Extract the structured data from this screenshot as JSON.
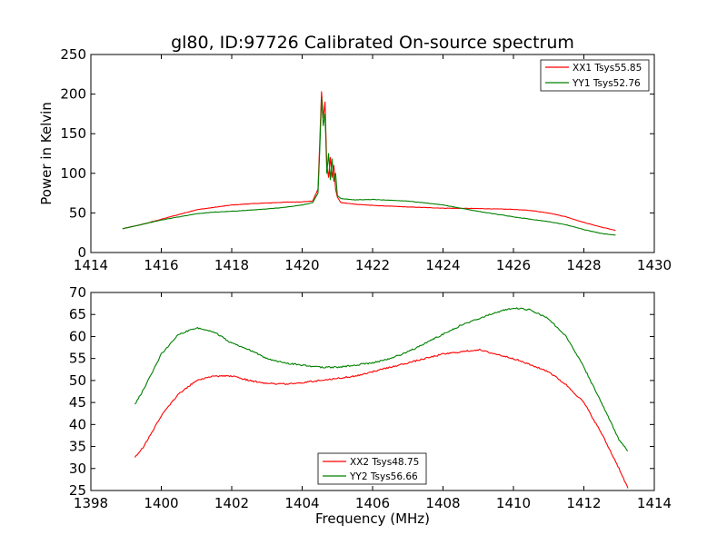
{
  "chart_data": [
    {
      "type": "line",
      "title": "gl80, ID:97726 Calibrated On-source spectrum",
      "xlabel": "",
      "ylabel": "Power in Kelvin",
      "xlim": [
        1414,
        1430
      ],
      "ylim": [
        0,
        250
      ],
      "xticks": [
        "1414",
        "1416",
        "1418",
        "1420",
        "1422",
        "1424",
        "1426",
        "1428",
        "1430"
      ],
      "yticks": [
        "0",
        "50",
        "100",
        "150",
        "200",
        "250"
      ],
      "legend_position": "top-right",
      "series": [
        {
          "name": "XX1 Tsys55.85",
          "color": "#ff0000",
          "points": [
            [
              1414.9,
              30
            ],
            [
              1415.5,
              36
            ],
            [
              1416,
              42
            ],
            [
              1416.5,
              48
            ],
            [
              1417,
              54
            ],
            [
              1417.5,
              57
            ],
            [
              1418,
              60
            ],
            [
              1418.5,
              61.5
            ],
            [
              1419,
              62.5
            ],
            [
              1419.5,
              63.5
            ],
            [
              1420,
              64
            ],
            [
              1420.3,
              65
            ],
            [
              1420.45,
              80
            ],
            [
              1420.5,
              140
            ],
            [
              1420.55,
              203
            ],
            [
              1420.6,
              170
            ],
            [
              1420.65,
              190
            ],
            [
              1420.7,
              110
            ],
            [
              1420.75,
              95
            ],
            [
              1420.8,
              120
            ],
            [
              1420.85,
              95
            ],
            [
              1420.9,
              110
            ],
            [
              1420.95,
              80
            ],
            [
              1421,
              70
            ],
            [
              1421.1,
              63
            ],
            [
              1421.5,
              61
            ],
            [
              1422,
              59.5
            ],
            [
              1423,
              57.5
            ],
            [
              1424,
              56
            ],
            [
              1425,
              55.5
            ],
            [
              1426,
              54.5
            ],
            [
              1426.5,
              53
            ],
            [
              1427,
              50
            ],
            [
              1427.5,
              45
            ],
            [
              1428,
              38
            ],
            [
              1428.5,
              32
            ],
            [
              1428.9,
              28
            ]
          ]
        },
        {
          "name": "YY1 Tsys52.76",
          "color": "#008000",
          "points": [
            [
              1414.9,
              30
            ],
            [
              1415.5,
              36
            ],
            [
              1416,
              41
            ],
            [
              1416.5,
              45
            ],
            [
              1417,
              49
            ],
            [
              1417.5,
              51
            ],
            [
              1418,
              52
            ],
            [
              1418.5,
              53.5
            ],
            [
              1419,
              55
            ],
            [
              1419.5,
              57
            ],
            [
              1420,
              60
            ],
            [
              1420.3,
              63
            ],
            [
              1420.45,
              75
            ],
            [
              1420.5,
              130
            ],
            [
              1420.55,
              195
            ],
            [
              1420.6,
              160
            ],
            [
              1420.65,
              175
            ],
            [
              1420.7,
              100
            ],
            [
              1420.75,
              125
            ],
            [
              1420.8,
              92
            ],
            [
              1420.85,
              118
            ],
            [
              1420.9,
              90
            ],
            [
              1420.95,
              100
            ],
            [
              1421,
              72
            ],
            [
              1421.1,
              68
            ],
            [
              1421.5,
              66.5
            ],
            [
              1422,
              67
            ],
            [
              1423,
              65
            ],
            [
              1424,
              60
            ],
            [
              1425,
              52
            ],
            [
              1426,
              45
            ],
            [
              1427,
              39
            ],
            [
              1427.5,
              35
            ],
            [
              1428,
              29
            ],
            [
              1428.5,
              24
            ],
            [
              1428.9,
              22
            ]
          ]
        }
      ]
    },
    {
      "type": "line",
      "title": "",
      "xlabel": "Frequency (MHz)",
      "ylabel": "",
      "xlim": [
        1398,
        1414
      ],
      "ylim": [
        25,
        70
      ],
      "xticks": [
        "1398",
        "1400",
        "1402",
        "1404",
        "1406",
        "1408",
        "1410",
        "1412",
        "1414"
      ],
      "yticks": [
        "25",
        "30",
        "35",
        "40",
        "45",
        "50",
        "55",
        "60",
        "65",
        "70"
      ],
      "legend_position": "bottom-center",
      "series": [
        {
          "name": "XX2 Tsys48.75",
          "color": "#ff0000",
          "points": [
            [
              1399.25,
              32.5
            ],
            [
              1399.5,
              35
            ],
            [
              1400,
              42
            ],
            [
              1400.5,
              47
            ],
            [
              1401,
              50
            ],
            [
              1401.5,
              51
            ],
            [
              1402,
              51
            ],
            [
              1402.5,
              50
            ],
            [
              1403,
              49.3
            ],
            [
              1403.5,
              49.2
            ],
            [
              1404,
              49.5
            ],
            [
              1404.5,
              50
            ],
            [
              1405,
              50.5
            ],
            [
              1405.5,
              51
            ],
            [
              1406,
              52
            ],
            [
              1406.5,
              53
            ],
            [
              1407,
              54
            ],
            [
              1407.5,
              55
            ],
            [
              1408,
              56
            ],
            [
              1408.5,
              56.5
            ],
            [
              1409,
              57
            ],
            [
              1409.5,
              56
            ],
            [
              1410,
              55
            ],
            [
              1410.5,
              53.5
            ],
            [
              1411,
              52
            ],
            [
              1411.5,
              49
            ],
            [
              1412,
              45
            ],
            [
              1412.5,
              38
            ],
            [
              1413,
              30
            ],
            [
              1413.25,
              25.5
            ]
          ]
        },
        {
          "name": "YY2 Tsys56.66",
          "color": "#008000",
          "points": [
            [
              1399.25,
              44.5
            ],
            [
              1399.5,
              48
            ],
            [
              1400,
              56
            ],
            [
              1400.5,
              60.5
            ],
            [
              1401,
              62
            ],
            [
              1401.5,
              61
            ],
            [
              1402,
              58.5
            ],
            [
              1402.5,
              57
            ],
            [
              1403,
              55
            ],
            [
              1403.5,
              54
            ],
            [
              1404,
              53.5
            ],
            [
              1404.5,
              53
            ],
            [
              1405,
              53
            ],
            [
              1405.5,
              53.5
            ],
            [
              1406,
              54
            ],
            [
              1406.5,
              55
            ],
            [
              1407,
              56.5
            ],
            [
              1407.5,
              58.5
            ],
            [
              1408,
              60.5
            ],
            [
              1408.5,
              62.5
            ],
            [
              1409,
              64
            ],
            [
              1409.5,
              65.5
            ],
            [
              1410,
              66.5
            ],
            [
              1410.5,
              66
            ],
            [
              1411,
              64
            ],
            [
              1411.5,
              60
            ],
            [
              1412,
              53
            ],
            [
              1412.5,
              45
            ],
            [
              1413,
              36.5
            ],
            [
              1413.25,
              34
            ]
          ]
        }
      ]
    }
  ]
}
